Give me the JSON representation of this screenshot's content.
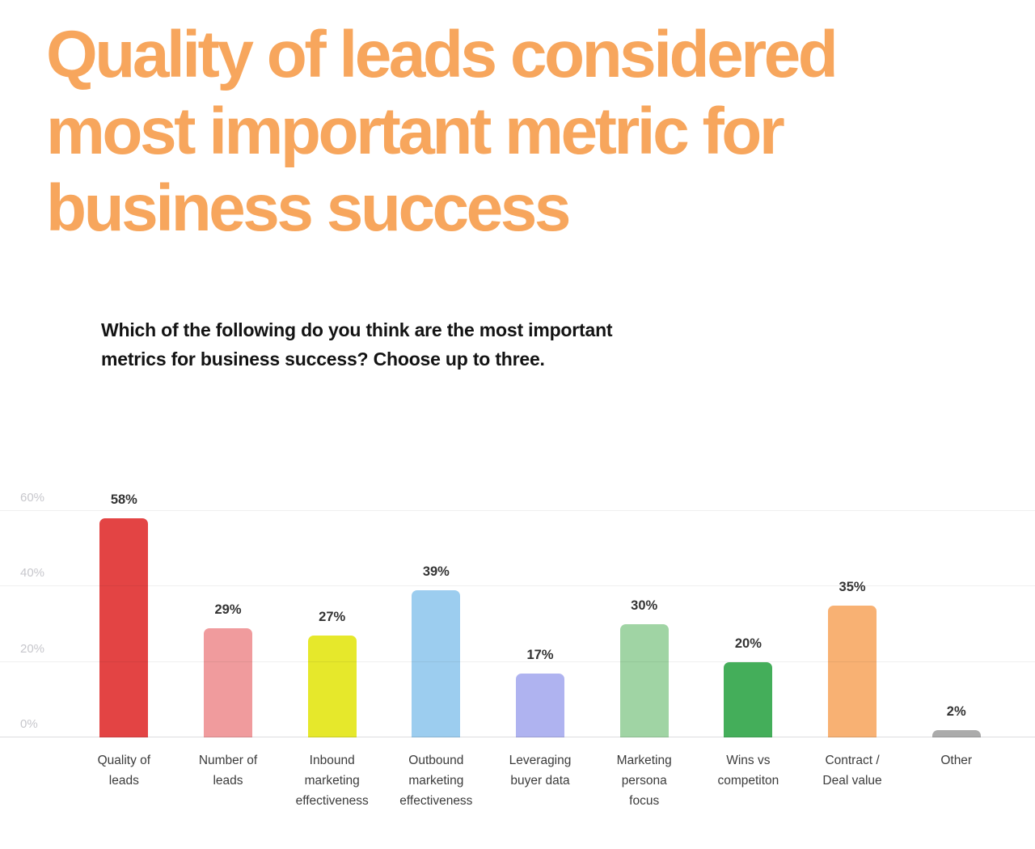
{
  "title": "Quality of leads considered\nmost important metric for\nbusiness success",
  "question": "Which of the following do you think are the most important\nmetrics for business success? Choose up to three.",
  "colors": {
    "title_accent": "#F7A65D",
    "axis_tick_text": "#C7C7CC",
    "value_label_text": "#333333",
    "category_label_text": "#3C3C3C"
  },
  "chart_data": {
    "type": "bar",
    "title": "Quality of leads considered most important metric for business success",
    "subtitle": "Which of the following do you think are the most important metrics for business success? Choose up to three.",
    "categories": [
      "Quality of leads",
      "Number of leads",
      "Inbound marketing effectiveness",
      "Outbound marketing effectiveness",
      "Leveraging buyer data",
      "Marketing persona focus",
      "Wins vs competiton",
      "Contract / Deal value",
      "Other"
    ],
    "category_labels": [
      "Quality of\nleads",
      "Number of\nleads",
      "Inbound\nmarketing\neffectiveness",
      "Outbound\nmarketing\neffectiveness",
      "Leveraging\nbuyer data",
      "Marketing\npersona\nfocus",
      "Wins vs\ncompetiton",
      "Contract /\nDeal value",
      "Other"
    ],
    "values": [
      58,
      29,
      27,
      39,
      17,
      30,
      20,
      35,
      2
    ],
    "value_labels": [
      "58%",
      "29%",
      "27%",
      "39%",
      "17%",
      "30%",
      "20%",
      "35%",
      "2%"
    ],
    "bar_colors": [
      "#E34444",
      "#F09B9D",
      "#E6E82B",
      "#9CCDEF",
      "#AFB3F0",
      "#A0D4A4",
      "#44AE5A",
      "#F8B173",
      "#ABABAB"
    ],
    "yticks": [
      {
        "label": "0%",
        "value": 0
      },
      {
        "label": "20%",
        "value": 20
      },
      {
        "label": "40%",
        "value": 40
      },
      {
        "label": "60%",
        "value": 60
      }
    ],
    "ylim": [
      0,
      69
    ],
    "xlabel": "",
    "ylabel": "",
    "grid": "horizontal",
    "legend": "none"
  }
}
